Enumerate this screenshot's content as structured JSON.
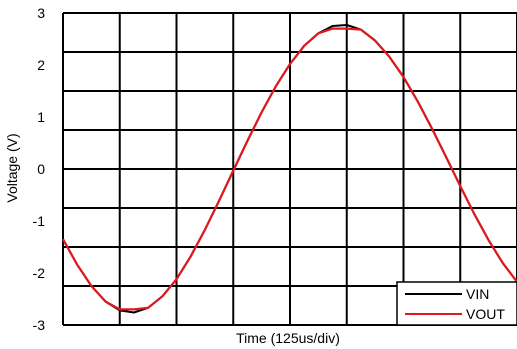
{
  "chart_data": {
    "type": "line",
    "xlabel": "Time (125us/div)",
    "ylabel": "Voltage (V)",
    "ylim": [
      -3,
      3
    ],
    "yticks": [
      "3",
      "2",
      "1",
      "0",
      "-1",
      "-2",
      "-3"
    ],
    "xlim": [
      0,
      8
    ],
    "x_divisions": 8,
    "y_divisions": 8,
    "grid": true,
    "legend_position": "bottom-right",
    "series": [
      {
        "name": "VIN",
        "color": "#000000",
        "x": [
          0,
          0.25,
          0.5,
          0.75,
          1.0,
          1.25,
          1.5,
          1.75,
          2.0,
          2.25,
          2.5,
          2.75,
          3.0,
          3.25,
          3.5,
          3.75,
          4.0,
          4.25,
          4.5,
          4.75,
          5.0,
          5.25,
          5.5,
          5.75,
          6.0,
          6.25,
          6.5,
          6.75,
          7.0,
          7.25,
          7.5,
          7.75,
          8.0
        ],
        "y": [
          -1.35,
          -1.84,
          -2.25,
          -2.55,
          -2.72,
          -2.76,
          -2.67,
          -2.45,
          -2.12,
          -1.68,
          -1.17,
          -0.61,
          -0.03,
          0.54,
          1.09,
          1.59,
          2.02,
          2.37,
          2.61,
          2.75,
          2.77,
          2.68,
          2.47,
          2.16,
          1.77,
          1.3,
          0.78,
          0.23,
          -0.33,
          -0.87,
          -1.37,
          -1.81,
          -2.17
        ]
      },
      {
        "name": "VOUT",
        "color": "#e0191e",
        "x": [
          0,
          0.25,
          0.5,
          0.75,
          1.0,
          1.25,
          1.5,
          1.75,
          2.0,
          2.25,
          2.5,
          2.75,
          3.0,
          3.25,
          3.5,
          3.75,
          4.0,
          4.25,
          4.5,
          4.75,
          5.0,
          5.25,
          5.5,
          5.75,
          6.0,
          6.25,
          6.5,
          6.75,
          7.0,
          7.25,
          7.5,
          7.75,
          8.0
        ],
        "y": [
          -1.35,
          -1.84,
          -2.25,
          -2.55,
          -2.7,
          -2.7,
          -2.67,
          -2.45,
          -2.12,
          -1.68,
          -1.17,
          -0.61,
          -0.03,
          0.54,
          1.09,
          1.59,
          2.02,
          2.37,
          2.61,
          2.7,
          2.7,
          2.68,
          2.47,
          2.16,
          1.77,
          1.3,
          0.78,
          0.23,
          -0.33,
          -0.87,
          -1.37,
          -1.81,
          -2.17
        ]
      }
    ]
  }
}
